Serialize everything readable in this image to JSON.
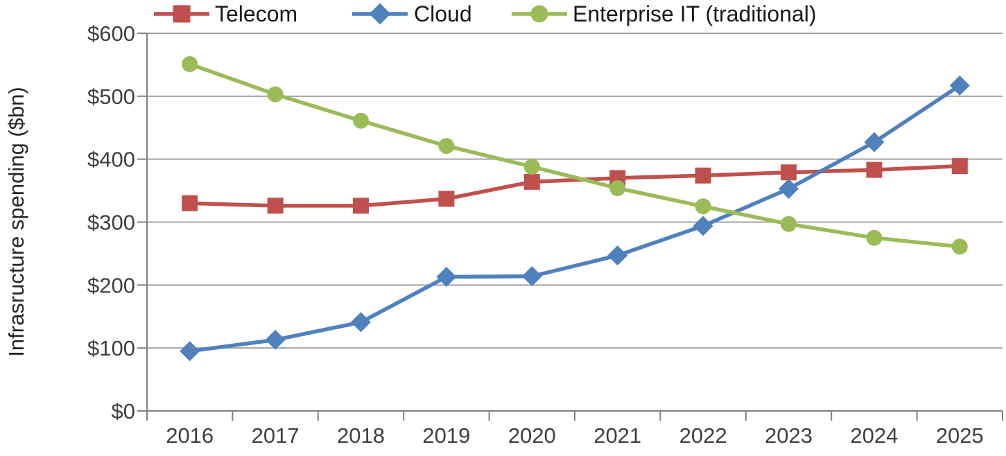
{
  "chart_data": {
    "type": "line",
    "title": "",
    "xlabel": "",
    "ylabel": "Infrasructure spending ($bn)",
    "categories": [
      "2016",
      "2017",
      "2018",
      "2019",
      "2020",
      "2021",
      "2022",
      "2023",
      "2024",
      "2025"
    ],
    "y_tick_labels": [
      "$0",
      "$100",
      "$200",
      "$300",
      "$400",
      "$500",
      "$600"
    ],
    "ylim": [
      0,
      600
    ],
    "y_tick_step": 100,
    "grid": "horizontal",
    "legend_position": "top",
    "series": [
      {
        "name": "Telecom",
        "color": "#C0504D",
        "marker": "square",
        "values": [
          330,
          326,
          326,
          337,
          364,
          370,
          374,
          379,
          383,
          389
        ]
      },
      {
        "name": "Cloud",
        "color": "#4F81BD",
        "marker": "diamond",
        "values": [
          95,
          113,
          141,
          213,
          214,
          247,
          294,
          353,
          427,
          517
        ]
      },
      {
        "name": "Enterprise IT (traditional)",
        "color": "#9BBB59",
        "marker": "circle",
        "values": [
          551,
          503,
          461,
          421,
          388,
          354,
          325,
          297,
          275,
          261
        ]
      }
    ],
    "colors": {
      "axis_line": "#808080",
      "gridline": "#A3A3A3",
      "tick_label": "#3F3F3F",
      "legend_text": "#1A1A1A",
      "axis_title": "#262626",
      "background": "#FFFFFF"
    }
  }
}
